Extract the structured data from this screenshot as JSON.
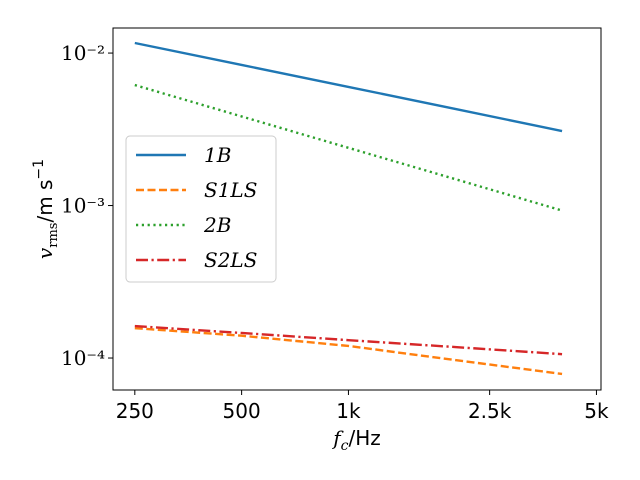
{
  "chart_data": {
    "type": "line",
    "xlabel": {
      "var": "f",
      "sub": "c",
      "unit": "/Hz"
    },
    "ylabel": {
      "var": "v",
      "sub": "rms",
      "unit": "/m s",
      "sup": "−1"
    },
    "x": [
      250,
      500,
      1000,
      2000,
      4000
    ],
    "series": [
      {
        "name": "1B",
        "color": "#1f77b4",
        "dash": "solid",
        "values": [
          0.01164,
          0.00836,
          0.006,
          0.0043,
          0.00308
        ]
      },
      {
        "name": "S1LS",
        "color": "#ff7f0e",
        "dash": "dashed",
        "values": [
          0.000157,
          0.00014,
          0.00012,
          9.7e-05,
          7.86e-05
        ]
      },
      {
        "name": "2B",
        "color": "#2ca02c",
        "dash": "dotted",
        "values": [
          0.00617,
          0.00384,
          0.00239,
          0.00149,
          0.000927
        ]
      },
      {
        "name": "S2LS",
        "color": "#d62728",
        "dash": "dashdot",
        "values": [
          0.000162,
          0.000146,
          0.000131,
          0.000118,
          0.000106
        ]
      }
    ],
    "xscale": "log",
    "yscale": "log",
    "xlim": [
      217,
      5150
    ],
    "ylim": [
      6.17e-05,
      0.0146
    ],
    "xticks": [
      250,
      500,
      {
        "value": 1000,
        "label": "1k"
      },
      {
        "value": 2500,
        "label": "2.5k"
      },
      {
        "value": 5000,
        "label": "5k"
      }
    ],
    "yticks": [
      {
        "value": 0.0001,
        "label": "10⁻⁴"
      },
      {
        "value": 0.001,
        "label": "10⁻³"
      },
      {
        "value": 0.01,
        "label": "10⁻²"
      }
    ],
    "legend": "left"
  }
}
